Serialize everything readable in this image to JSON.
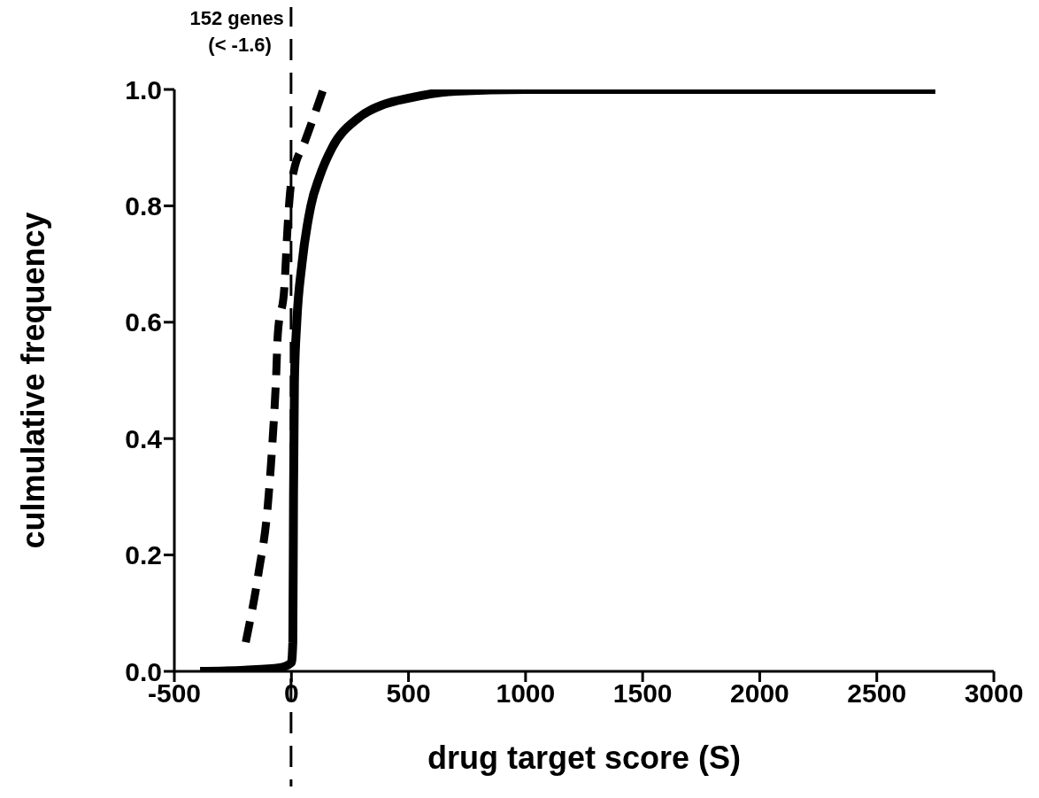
{
  "chart_data": {
    "type": "line",
    "xlabel": "drug target score (S)",
    "ylabel": "culmulative frequency",
    "series": [
      {
        "color": "#000000",
        "line_style": "solid",
        "x": [
          -390,
          -200,
          -50,
          0,
          6,
          9,
          13,
          23,
          45,
          83,
          120,
          174,
          283,
          400,
          500,
          700,
          1000,
          2750
        ],
        "values": [
          0,
          0.002,
          0.006,
          0.015,
          0.05,
          0.3,
          0.5,
          0.6,
          0.7,
          0.8,
          0.85,
          0.9,
          0.95,
          0.975,
          0.985,
          0.997,
          1,
          1
        ]
      },
      {
        "color": "#000000",
        "line_style": "dashed",
        "x": [
          -195,
          -140,
          -102,
          -80,
          -66,
          -58,
          -30,
          -17,
          -4,
          10,
          57,
          136
        ],
        "values": [
          0.05,
          0.17,
          0.28,
          0.4,
          0.5,
          0.58,
          0.66,
          0.76,
          0.83,
          0.86,
          0.91,
          1
        ]
      }
    ],
    "xlim": [
      -500,
      3000
    ],
    "xticks": [
      -500,
      0,
      500,
      1000,
      1500,
      2000,
      2500,
      3000
    ],
    "ylim": [
      0,
      1
    ],
    "yticks": [
      {
        "value": 0,
        "label": "0.0"
      },
      0.2,
      0.4,
      0.6,
      0.8,
      {
        "value": 1,
        "label": "1.0"
      }
    ],
    "grid": false,
    "legend": false,
    "marker": "none",
    "ref_lines": [
      {
        "axis": "x",
        "value": -1.6,
        "label": "152 genes\n(< -1.6)",
        "color": "#000000",
        "line_style": "dashed"
      }
    ]
  }
}
